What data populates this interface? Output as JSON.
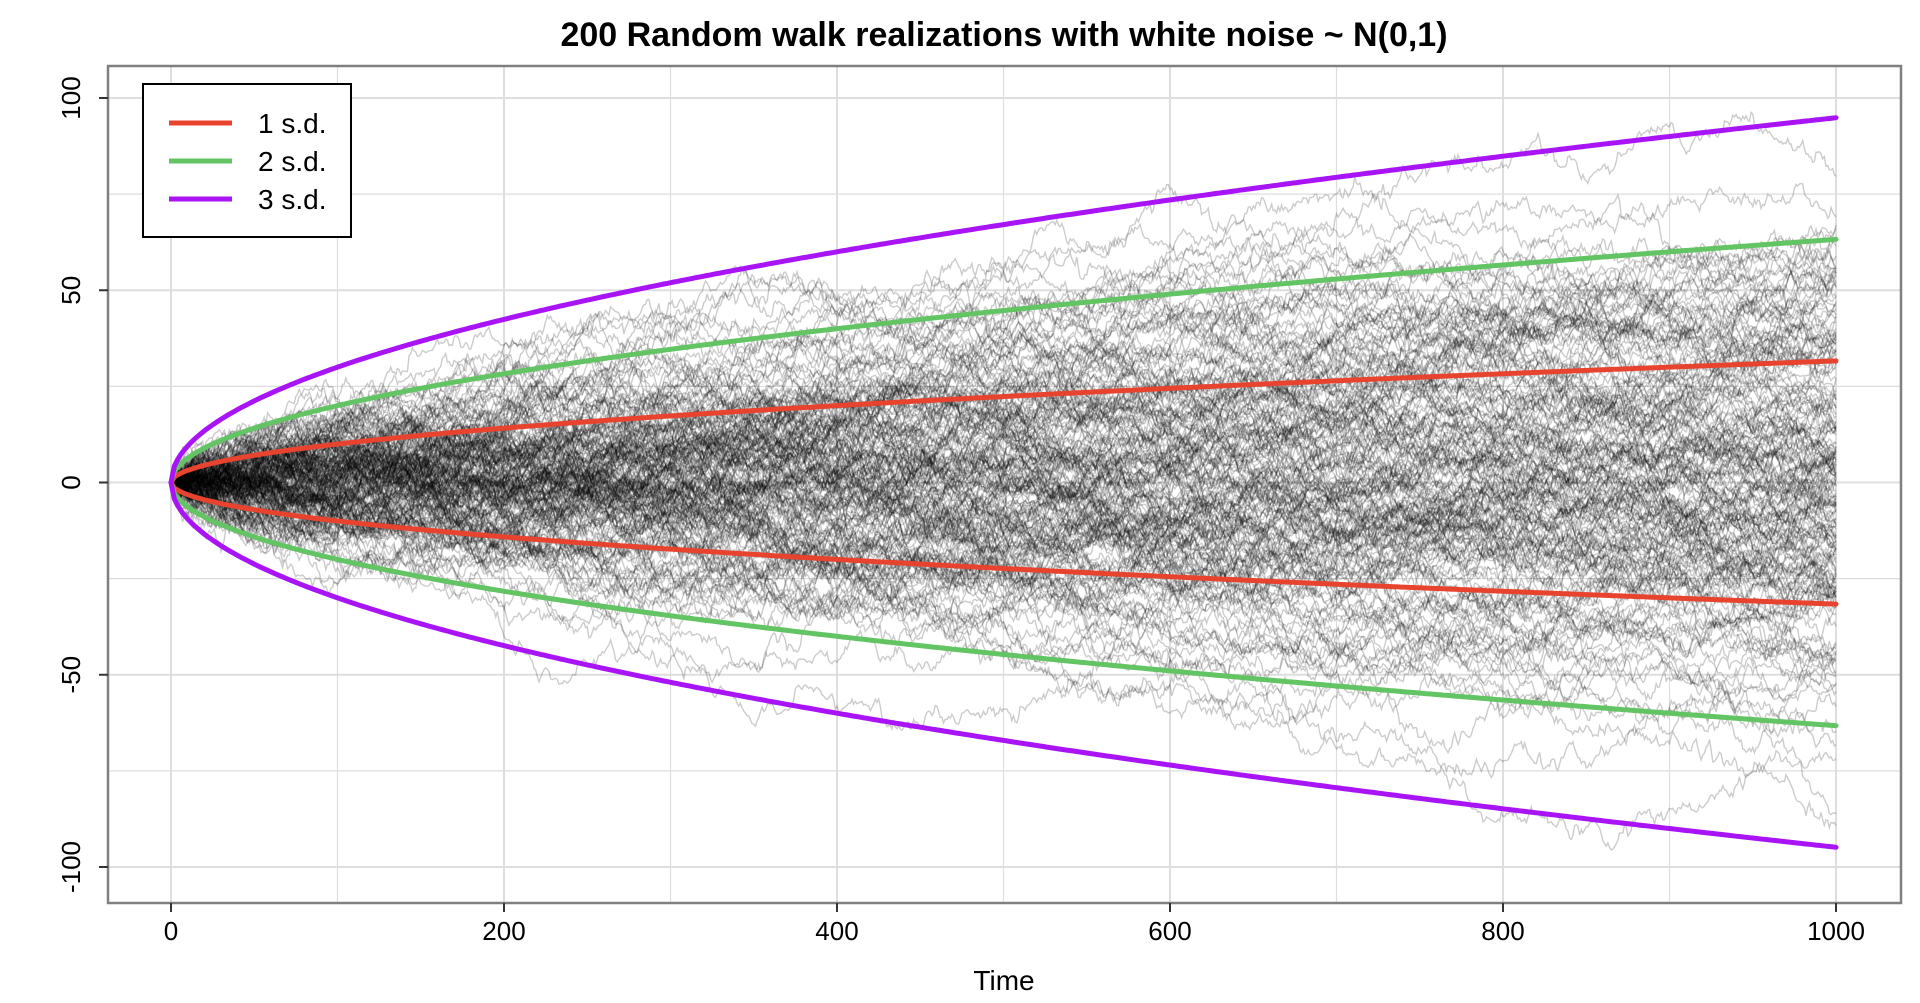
{
  "chart_data": {
    "type": "line",
    "title": "200 Random walk realizations with white noise ~ N(0,1)",
    "xlabel": "Time",
    "ylabel": "",
    "xlim": [
      0,
      1000
    ],
    "ylim": [
      -100,
      100
    ],
    "x_ticks": [
      0,
      200,
      400,
      600,
      800,
      1000
    ],
    "y_ticks": [
      -100,
      -50,
      0,
      50,
      100
    ],
    "x_tick_labels": [
      "0",
      "200",
      "400",
      "600",
      "800",
      "1000"
    ],
    "y_tick_labels": [
      "-100",
      "-50",
      "0",
      "50",
      "100"
    ],
    "grid": true,
    "legend_position": "top-left",
    "realizations": {
      "count": 200,
      "length": 1000,
      "start": 0,
      "noise_mean": 0,
      "noise_sd": 1,
      "color": "#000000"
    },
    "bands": [
      {
        "name": "1 s.d.",
        "multiplier": 1,
        "color": "#E8432F",
        "upper_end": 31.6,
        "lower_end": -31.6
      },
      {
        "name": "2 s.d.",
        "multiplier": 2,
        "color": "#62C462",
        "upper_end": 63.2,
        "lower_end": -63.2
      },
      {
        "name": "3 s.d.",
        "multiplier": 3,
        "color": "#A814F5",
        "upper_end": 94.9,
        "lower_end": -94.9
      }
    ],
    "colors": {
      "grid": "#DEDEDE",
      "panel_border": "#808080",
      "background": "#FFFFFF"
    }
  }
}
